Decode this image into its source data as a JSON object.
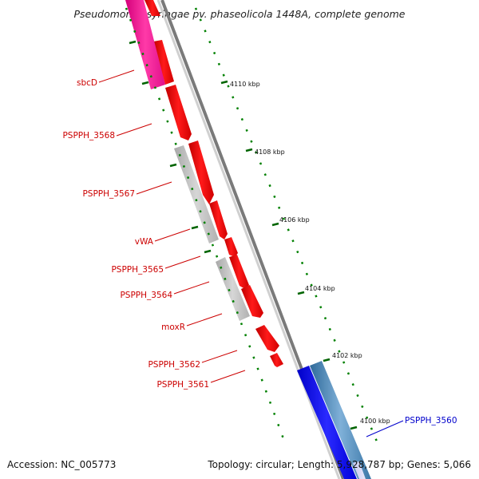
{
  "title": "Pseudomonas syringae pv. phaseolicola 1448A, complete genome",
  "accession": "Accession: NC_005773",
  "summary": "Topology: circular; Length: 5,928,787 bp; Genes: 5,066",
  "colors": {
    "forward_gene": "#ff0000",
    "reverse_gene_gray": "#c0c0c0",
    "rna_pink": "#ff1493",
    "reverse_gene_blue": "#0000ff",
    "reverse_gene_steel": "#4682b4",
    "label_red": "#cc0000",
    "label_blue": "#0000cc",
    "tick_green": "#006400",
    "backbone": "#808080"
  },
  "ruler": {
    "unit": "kbp",
    "ticks": [
      {
        "label": "4110 kbp"
      },
      {
        "label": "4108 kbp"
      },
      {
        "label": "4106 kbp"
      },
      {
        "label": "4104 kbp"
      },
      {
        "label": "4102 kbp"
      },
      {
        "label": "4100 kbp"
      }
    ]
  },
  "gene_labels": [
    {
      "name": "sbcD",
      "color": "red"
    },
    {
      "name": "PSPPH_3568",
      "color": "red"
    },
    {
      "name": "PSPPH_3567",
      "color": "red"
    },
    {
      "name": "vWA",
      "color": "red"
    },
    {
      "name": "PSPPH_3565",
      "color": "red"
    },
    {
      "name": "PSPPH_3564",
      "color": "red"
    },
    {
      "name": "moxR",
      "color": "red"
    },
    {
      "name": "PSPPH_3562",
      "color": "red"
    },
    {
      "name": "PSPPH_3561",
      "color": "red"
    },
    {
      "name": "PSPPH_3560",
      "color": "blue"
    }
  ]
}
